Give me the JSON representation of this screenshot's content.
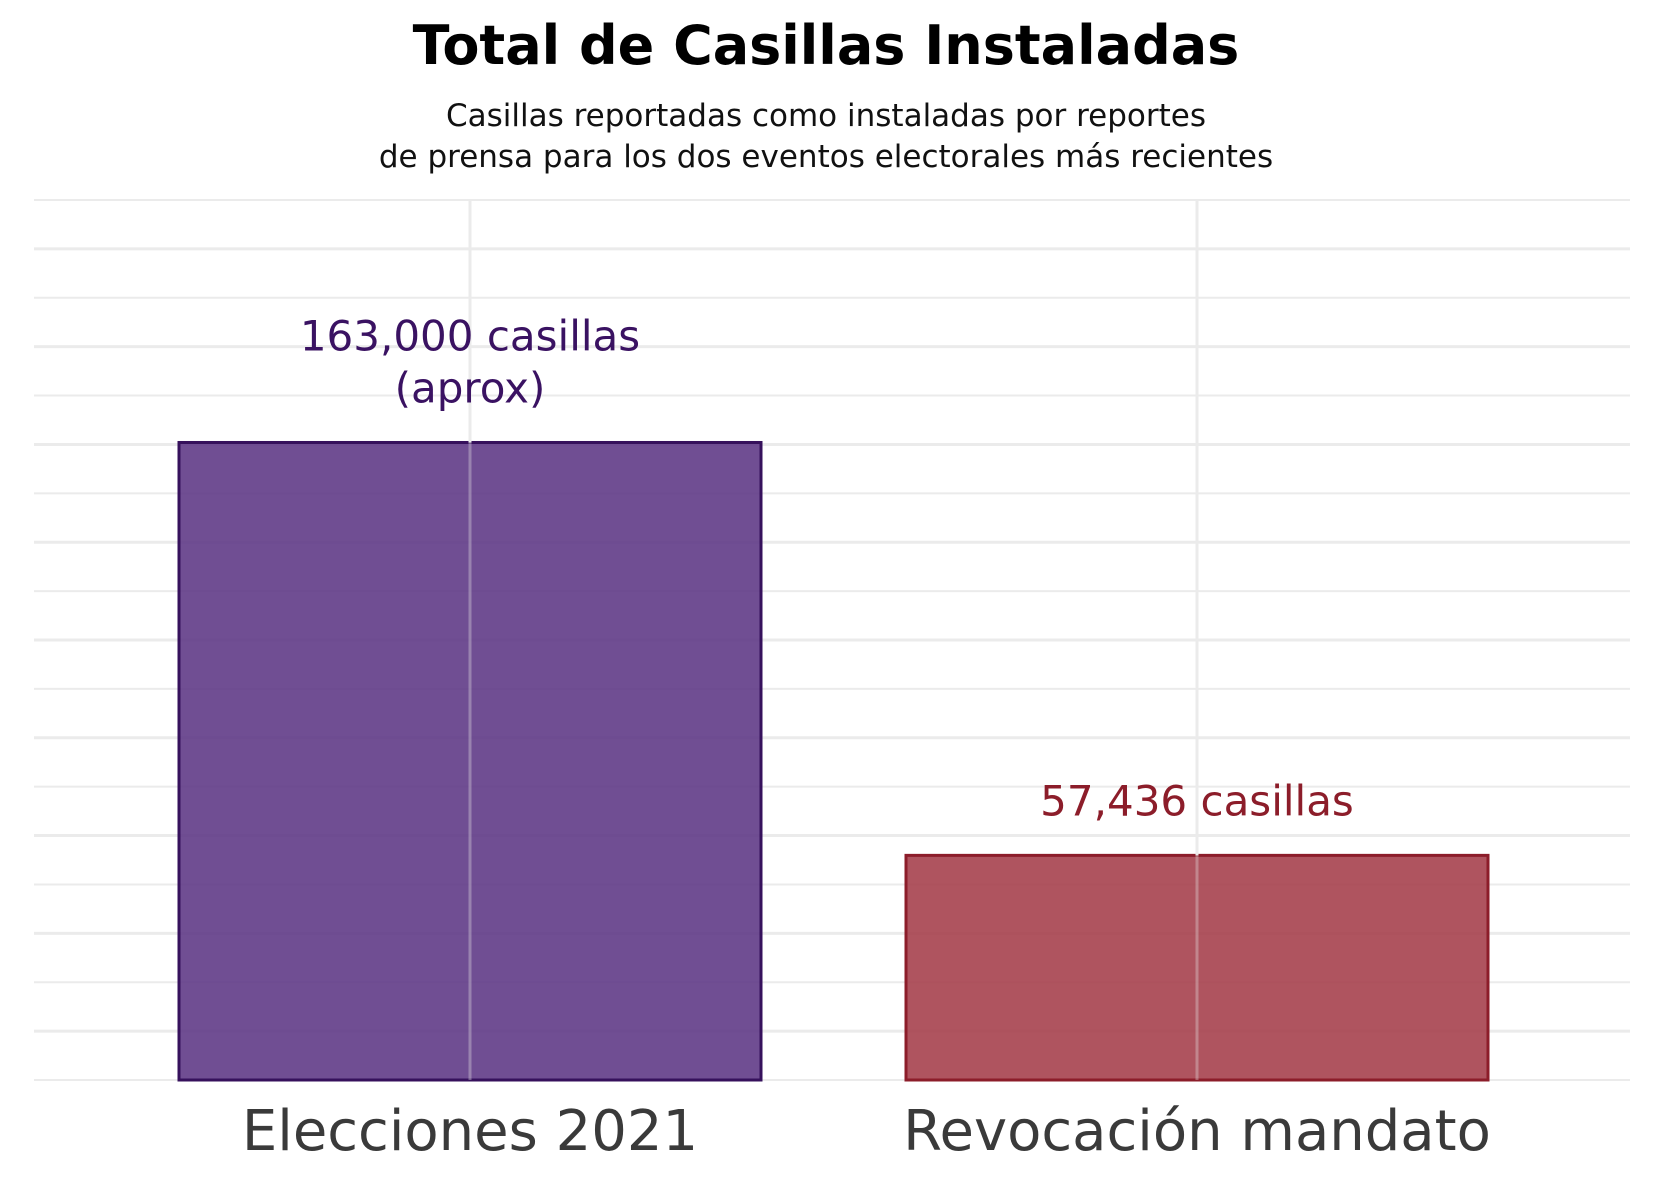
{
  "chart_data": {
    "type": "bar",
    "title": "Total de Casillas Instaladas",
    "subtitle": [
      "Casillas reportadas como instaladas por reportes",
      "de prensa para los dos eventos electorales más recientes"
    ],
    "xlabel": "",
    "ylabel": "",
    "categories": [
      "Elecciones 2021",
      "Revocación mandato"
    ],
    "values": [
      163000,
      57436
    ],
    "data_labels": [
      [
        "163,000 casillas",
        "(aprox)"
      ],
      [
        "57,436 casillas"
      ]
    ],
    "bar_colors": [
      "#5b3483",
      "#a33b47"
    ],
    "bar_border_colors": [
      "#36115c",
      "#8c1d2a"
    ],
    "label_colors": [
      "#3a1262",
      "#8c1d2a"
    ],
    "ylim": [
      0,
      225000
    ],
    "grid": true,
    "y_tick_labels_shown": false,
    "legend": "none"
  }
}
